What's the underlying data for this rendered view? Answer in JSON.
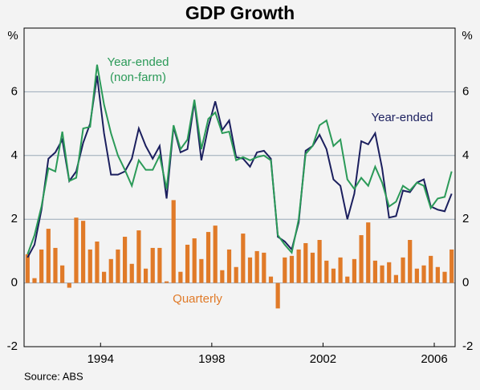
{
  "chart_data": {
    "type": "bar_line",
    "title": "GDP Growth",
    "y_unit": "%",
    "source": "Source: ABS",
    "categories": [
      null,
      null,
      null,
      null,
      null,
      null,
      null,
      null,
      null,
      null,
      null,
      "1994",
      null,
      null,
      null,
      null,
      null,
      null,
      null,
      null,
      null,
      null,
      null,
      null,
      null,
      null,
      null,
      "1998",
      null,
      null,
      null,
      null,
      null,
      null,
      null,
      null,
      null,
      null,
      null,
      null,
      null,
      null,
      null,
      "2002",
      null,
      null,
      null,
      null,
      null,
      null,
      null,
      null,
      null,
      null,
      null,
      null,
      null,
      null,
      null,
      "2006",
      null,
      null
    ],
    "ylim": [
      -2,
      8
    ],
    "yticks": [
      -2,
      0,
      2,
      4,
      6
    ],
    "grid": true,
    "bars": {
      "name": "Quarterly",
      "color": "#e07a28",
      "values": [
        0.9,
        0.15,
        1.05,
        1.7,
        1.1,
        0.55,
        -0.15,
        2.05,
        1.95,
        1.05,
        1.3,
        0.35,
        0.75,
        1.05,
        1.45,
        0.6,
        1.65,
        0.45,
        1.1,
        1.1,
        0.05,
        2.6,
        0.35,
        1.2,
        1.4,
        0.75,
        1.6,
        1.8,
        0.4,
        1.05,
        0.5,
        1.55,
        0.8,
        1.0,
        0.95,
        0.2,
        -0.8,
        0.8,
        0.85,
        1.05,
        1.25,
        0.95,
        1.35,
        0.7,
        0.45,
        0.8,
        0.2,
        0.75,
        1.5,
        1.9,
        0.7,
        0.55,
        0.65,
        0.25,
        0.8,
        1.35,
        0.45,
        0.55,
        0.85,
        0.5,
        0.35,
        1.05
      ]
    },
    "series": [
      {
        "name": "Year-ended",
        "color": "#1b1f5e",
        "values": [
          0.8,
          1.2,
          2.3,
          3.9,
          4.1,
          4.5,
          3.2,
          3.5,
          4.4,
          5.0,
          6.5,
          4.7,
          3.4,
          3.4,
          3.5,
          3.9,
          4.85,
          4.3,
          3.9,
          4.3,
          2.65,
          4.9,
          4.1,
          4.2,
          5.7,
          3.85,
          4.9,
          5.7,
          4.8,
          5.1,
          3.95,
          3.9,
          3.65,
          4.1,
          4.15,
          3.9,
          1.45,
          1.3,
          1.05,
          1.9,
          4.15,
          4.3,
          4.65,
          4.2,
          3.25,
          3.05,
          2.0,
          2.8,
          4.45,
          4.35,
          4.7,
          3.6,
          2.05,
          2.1,
          2.9,
          2.85,
          3.15,
          3.25,
          2.4,
          2.3,
          2.25,
          2.8
        ]
      },
      {
        "name": "Year-ended (non-farm)",
        "color": "#2b9a58",
        "values": [
          0.9,
          1.5,
          2.4,
          3.6,
          3.5,
          4.75,
          3.2,
          3.3,
          4.85,
          4.9,
          6.85,
          5.6,
          4.7,
          4.0,
          3.55,
          3.05,
          3.85,
          3.55,
          3.55,
          4.0,
          2.95,
          4.95,
          4.2,
          4.5,
          5.75,
          4.2,
          5.15,
          5.35,
          4.7,
          4.75,
          3.85,
          3.95,
          3.85,
          3.95,
          4.0,
          3.85,
          1.5,
          1.2,
          0.95,
          2.0,
          4.05,
          4.3,
          4.95,
          5.1,
          4.3,
          4.5,
          3.25,
          2.95,
          3.3,
          3.05,
          3.65,
          3.15,
          2.4,
          2.55,
          3.05,
          2.9,
          3.15,
          3.05,
          2.35,
          2.65,
          2.7,
          3.5
        ]
      }
    ]
  }
}
